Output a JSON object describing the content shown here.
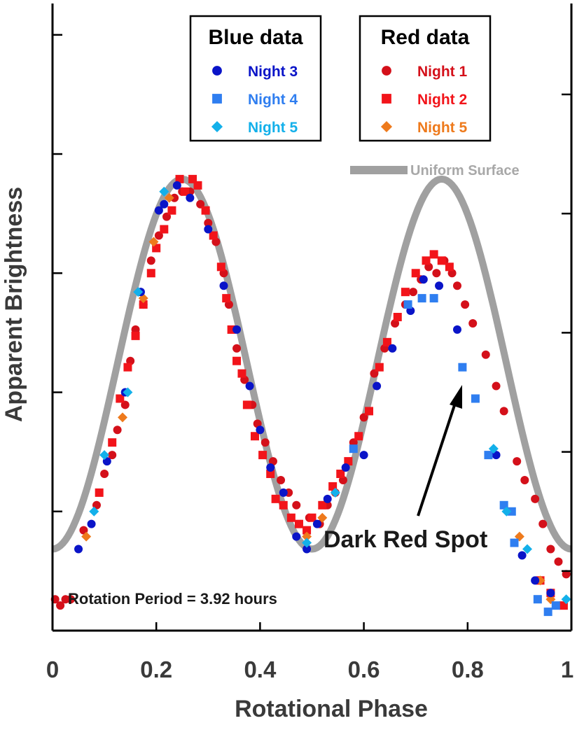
{
  "chart_data": {
    "type": "scatter",
    "xlabel": "Rotational Phase",
    "ylabel": "Apparent Brightness",
    "xlim": [
      0,
      1
    ],
    "ylim": [
      0,
      1
    ],
    "x_ticks": [
      "0",
      "0.2",
      "0.4",
      "0.6",
      "0.8",
      "1"
    ],
    "y_tick_labels_shown": false,
    "grid": false,
    "annotations": {
      "spot_label": "Dark Red Spot",
      "period_label": "Rotation Period = 3.92 hours"
    },
    "model": {
      "name": "Uniform Surface",
      "color": "#a0a0a0",
      "type": "line",
      "form": "sinusoid with two maxima per rotation",
      "minima_phase": [
        0.0,
        0.5,
        1.0
      ],
      "maxima_phase": [
        0.25,
        0.75
      ],
      "min_value": 0.13,
      "max_value": 0.72
    },
    "legends": [
      {
        "title": "Blue data",
        "position": "top-center",
        "entries": [
          {
            "name": "Night 3",
            "color": "#0a14c8",
            "marker": "circle"
          },
          {
            "name": "Night 4",
            "color": "#2f7ef0",
            "marker": "square"
          },
          {
            "name": "Night 5",
            "color": "#13b0ea",
            "marker": "diamond"
          }
        ]
      },
      {
        "title": "Red data",
        "position": "top-right",
        "entries": [
          {
            "name": "Night 1",
            "color": "#d4101a",
            "marker": "circle"
          },
          {
            "name": "Night 2",
            "color": "#f2141a",
            "marker": "square"
          },
          {
            "name": "Night 5",
            "color": "#ee7a1c",
            "marker": "diamond"
          }
        ]
      }
    ],
    "series": [
      {
        "name": "Night 3",
        "legend": "Blue data",
        "marker": "circle",
        "color": "#0a14c8",
        "points": [
          [
            0.05,
            0.13
          ],
          [
            0.075,
            0.17
          ],
          [
            0.105,
            0.27
          ],
          [
            0.14,
            0.38
          ],
          [
            0.17,
            0.54
          ],
          [
            0.205,
            0.67
          ],
          [
            0.215,
            0.68
          ],
          [
            0.24,
            0.71
          ],
          [
            0.265,
            0.69
          ],
          [
            0.3,
            0.64
          ],
          [
            0.33,
            0.55
          ],
          [
            0.355,
            0.48
          ],
          [
            0.38,
            0.39
          ],
          [
            0.4,
            0.32
          ],
          [
            0.42,
            0.26
          ],
          [
            0.445,
            0.22
          ],
          [
            0.47,
            0.15
          ],
          [
            0.49,
            0.13
          ],
          [
            0.51,
            0.17
          ],
          [
            0.53,
            0.21
          ],
          [
            0.565,
            0.26
          ],
          [
            0.6,
            0.28
          ],
          [
            0.625,
            0.39
          ],
          [
            0.655,
            0.45
          ],
          [
            0.69,
            0.51
          ],
          [
            0.715,
            0.56
          ],
          [
            0.745,
            0.55
          ],
          [
            0.78,
            0.48
          ],
          [
            0.855,
            0.28
          ],
          [
            0.905,
            0.12
          ],
          [
            0.93,
            0.08
          ],
          [
            0.96,
            0.06
          ]
        ]
      },
      {
        "name": "Night 4",
        "legend": "Blue data",
        "marker": "square",
        "color": "#2f7ef0",
        "points": [
          [
            0.58,
            0.29
          ],
          [
            0.685,
            0.52
          ],
          [
            0.712,
            0.53
          ],
          [
            0.735,
            0.53
          ],
          [
            0.79,
            0.42
          ],
          [
            0.815,
            0.37
          ],
          [
            0.84,
            0.28
          ],
          [
            0.87,
            0.2
          ],
          [
            0.885,
            0.19
          ],
          [
            0.89,
            0.14
          ],
          [
            0.935,
            0.05
          ],
          [
            0.955,
            0.03
          ],
          [
            0.97,
            0.04
          ]
        ]
      },
      {
        "name": "Night 5 (blue)",
        "legend": "Blue data",
        "marker": "diamond",
        "color": "#13b0ea",
        "points": [
          [
            0.08,
            0.19
          ],
          [
            0.1,
            0.28
          ],
          [
            0.145,
            0.38
          ],
          [
            0.165,
            0.54
          ],
          [
            0.215,
            0.7
          ],
          [
            0.49,
            0.14
          ],
          [
            0.545,
            0.22
          ],
          [
            0.85,
            0.29
          ],
          [
            0.875,
            0.19
          ],
          [
            0.915,
            0.13
          ],
          [
            0.99,
            0.05
          ]
        ]
      },
      {
        "name": "Night 1",
        "legend": "Red data",
        "marker": "circle",
        "color": "#d4101a",
        "points": [
          [
            0.005,
            0.05
          ],
          [
            0.015,
            0.04
          ],
          [
            0.025,
            0.05
          ],
          [
            0.035,
            0.05
          ],
          [
            0.06,
            0.16
          ],
          [
            0.085,
            0.2
          ],
          [
            0.1,
            0.25
          ],
          [
            0.115,
            0.28
          ],
          [
            0.125,
            0.32
          ],
          [
            0.14,
            0.36
          ],
          [
            0.15,
            0.43
          ],
          [
            0.16,
            0.48
          ],
          [
            0.175,
            0.52
          ],
          [
            0.19,
            0.59
          ],
          [
            0.205,
            0.63
          ],
          [
            0.22,
            0.66
          ],
          [
            0.235,
            0.69
          ],
          [
            0.25,
            0.7
          ],
          [
            0.265,
            0.7
          ],
          [
            0.285,
            0.68
          ],
          [
            0.3,
            0.65
          ],
          [
            0.315,
            0.62
          ],
          [
            0.33,
            0.57
          ],
          [
            0.34,
            0.52
          ],
          [
            0.355,
            0.45
          ],
          [
            0.37,
            0.4
          ],
          [
            0.385,
            0.36
          ],
          [
            0.395,
            0.33
          ],
          [
            0.41,
            0.3
          ],
          [
            0.425,
            0.27
          ],
          [
            0.44,
            0.24
          ],
          [
            0.455,
            0.22
          ],
          [
            0.47,
            0.2
          ],
          [
            0.495,
            0.18
          ],
          [
            0.515,
            0.17
          ],
          [
            0.53,
            0.2
          ],
          [
            0.545,
            0.22
          ],
          [
            0.56,
            0.24
          ],
          [
            0.58,
            0.3
          ],
          [
            0.6,
            0.34
          ],
          [
            0.62,
            0.41
          ],
          [
            0.64,
            0.45
          ],
          [
            0.66,
            0.49
          ],
          [
            0.68,
            0.52
          ],
          [
            0.695,
            0.54
          ],
          [
            0.71,
            0.56
          ],
          [
            0.725,
            0.58
          ],
          [
            0.74,
            0.57
          ],
          [
            0.755,
            0.59
          ],
          [
            0.77,
            0.57
          ],
          [
            0.78,
            0.55
          ],
          [
            0.795,
            0.52
          ],
          [
            0.81,
            0.49
          ],
          [
            0.835,
            0.44
          ],
          [
            0.855,
            0.39
          ],
          [
            0.87,
            0.35
          ],
          [
            0.895,
            0.27
          ],
          [
            0.91,
            0.24
          ],
          [
            0.93,
            0.21
          ],
          [
            0.945,
            0.17
          ],
          [
            0.96,
            0.13
          ],
          [
            0.975,
            0.11
          ],
          [
            0.99,
            0.09
          ]
        ]
      },
      {
        "name": "Night 2",
        "legend": "Red data",
        "marker": "square",
        "color": "#f2141a",
        "points": [
          [
            0.09,
            0.22
          ],
          [
            0.115,
            0.3
          ],
          [
            0.13,
            0.37
          ],
          [
            0.145,
            0.42
          ],
          [
            0.16,
            0.47
          ],
          [
            0.175,
            0.52
          ],
          [
            0.19,
            0.57
          ],
          [
            0.2,
            0.61
          ],
          [
            0.215,
            0.64
          ],
          [
            0.23,
            0.67
          ],
          [
            0.245,
            0.72
          ],
          [
            0.255,
            0.7
          ],
          [
            0.27,
            0.72
          ],
          [
            0.28,
            0.71
          ],
          [
            0.295,
            0.67
          ],
          [
            0.31,
            0.63
          ],
          [
            0.325,
            0.58
          ],
          [
            0.335,
            0.53
          ],
          [
            0.345,
            0.48
          ],
          [
            0.355,
            0.43
          ],
          [
            0.365,
            0.41
          ],
          [
            0.375,
            0.36
          ],
          [
            0.39,
            0.31
          ],
          [
            0.405,
            0.28
          ],
          [
            0.42,
            0.25
          ],
          [
            0.43,
            0.21
          ],
          [
            0.445,
            0.2
          ],
          [
            0.46,
            0.18
          ],
          [
            0.475,
            0.17
          ],
          [
            0.49,
            0.16
          ],
          [
            0.5,
            0.18
          ],
          [
            0.52,
            0.2
          ],
          [
            0.54,
            0.23
          ],
          [
            0.555,
            0.25
          ],
          [
            0.57,
            0.27
          ],
          [
            0.59,
            0.31
          ],
          [
            0.61,
            0.35
          ],
          [
            0.63,
            0.42
          ],
          [
            0.645,
            0.46
          ],
          [
            0.665,
            0.5
          ],
          [
            0.68,
            0.54
          ],
          [
            0.7,
            0.57
          ],
          [
            0.72,
            0.59
          ],
          [
            0.735,
            0.6
          ],
          [
            0.75,
            0.59
          ],
          [
            0.765,
            0.58
          ],
          [
            0.94,
            0.08
          ],
          [
            0.96,
            0.06
          ],
          [
            0.985,
            0.04
          ]
        ]
      },
      {
        "name": "Night 5 (red)",
        "legend": "Red data",
        "marker": "diamond",
        "color": "#ee7a1c",
        "points": [
          [
            0.065,
            0.15
          ],
          [
            0.135,
            0.34
          ],
          [
            0.175,
            0.53
          ],
          [
            0.195,
            0.62
          ],
          [
            0.225,
            0.69
          ],
          [
            0.49,
            0.15
          ],
          [
            0.52,
            0.18
          ],
          [
            0.9,
            0.15
          ],
          [
            0.94,
            0.08
          ],
          [
            0.96,
            0.05
          ]
        ]
      }
    ]
  }
}
